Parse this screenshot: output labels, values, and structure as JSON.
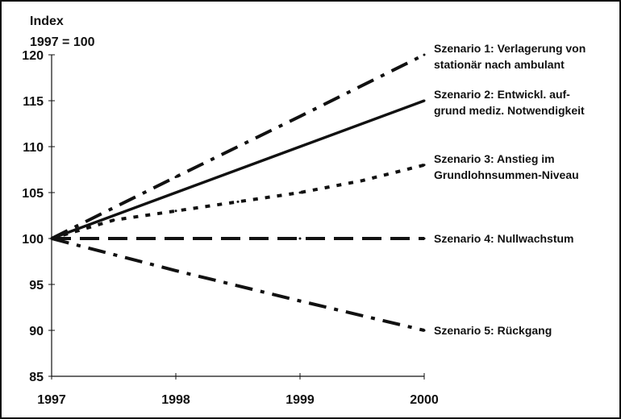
{
  "chart_data": {
    "type": "line",
    "ylabel_line1": "Index",
    "ylabel_line2": "1997 = 100",
    "xlabel": "",
    "x": [
      1997,
      1998,
      1999,
      2000
    ],
    "xlim": [
      1997,
      2000
    ],
    "ylim": [
      85,
      120
    ],
    "yticks": [
      85,
      90,
      95,
      100,
      105,
      110,
      115,
      120
    ],
    "grid": false,
    "legend_placement": "right, labels at line ends",
    "series": [
      {
        "name": "Szenario 1: Verlagerung von stationär nach ambulant",
        "label_lines": [
          "Szenario 1: Verlagerung von",
          "stationär nach ambulant"
        ],
        "style": "dash-dot",
        "x": [
          1997,
          1998,
          1999,
          2000
        ],
        "values": [
          100,
          106.7,
          113.3,
          120
        ]
      },
      {
        "name": "Szenario 2: Entwickl. aufgrund mediz. Notwendigkeit",
        "label_lines": [
          "Szenario 2: Entwickl. auf-",
          "grund mediz. Notwendigkeit"
        ],
        "style": "solid",
        "x": [
          1997,
          1998,
          1999,
          2000
        ],
        "values": [
          100,
          105,
          110,
          115
        ]
      },
      {
        "name": "Szenario 3: Anstieg im Grundlohnsummen-Niveau",
        "label_lines": [
          "Szenario 3: Anstieg im",
          "Grundlohnsummen-Niveau"
        ],
        "style": "dotted",
        "x": [
          1997,
          1997.5,
          1998,
          1998.5,
          1999,
          1999.5,
          2000
        ],
        "values": [
          100,
          102,
          103,
          104,
          105,
          106.3,
          108
        ]
      },
      {
        "name": "Szenario 4: Nullwachstum",
        "label_lines": [
          "Szenario 4: Nullwachstum"
        ],
        "style": "long-dash",
        "x": [
          1997,
          1998,
          1999,
          2000
        ],
        "values": [
          100,
          100,
          100,
          100
        ]
      },
      {
        "name": "Szenario 5: Rückgang",
        "label_lines": [
          "Szenario 5: Rückgang"
        ],
        "style": "dash-dot",
        "x": [
          1997,
          1998,
          1999,
          2000
        ],
        "values": [
          100,
          96.5,
          93.2,
          90
        ]
      }
    ],
    "colors": {
      "line": "#111111",
      "background": "#ffffff"
    }
  }
}
